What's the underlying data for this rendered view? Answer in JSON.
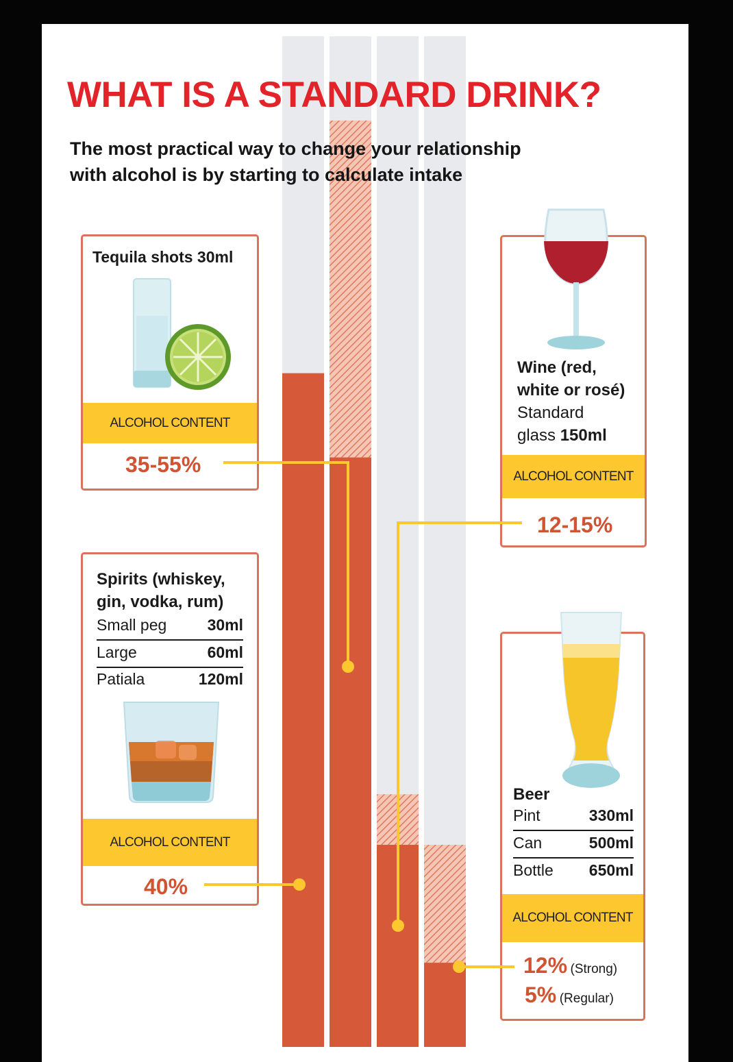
{
  "title": "WHAT IS A STANDARD DRINK?",
  "subtitle_line1": "The most practical way to change your relationship",
  "subtitle_line2": "with alcohol is by starting to calculate intake",
  "band_label": "ALCOHOL CONTENT",
  "colors": {
    "accent_red": "#e2232a",
    "value_orange": "#d05431",
    "band_yellow": "#fdc82f",
    "card_border": "#d7745b",
    "bar_fill": "#d65a3a",
    "bar_track": "#e2e3e8"
  },
  "tequila": {
    "name": "Tequila shots 30ml",
    "value": "35-55%",
    "icon": "shot-glass-with-lime-icon"
  },
  "wine": {
    "name_line1": "Wine (red,",
    "name_line2": "white or rosé)",
    "desc_line1": "Standard",
    "desc_line2_prefix": "glass ",
    "desc_line2_bold": "150ml",
    "value": "12-15%",
    "icon": "wine-glass-icon"
  },
  "spirits": {
    "name_line1": "Spirits (whiskey,",
    "name_line2": "gin, vodka, rum)",
    "rows": [
      {
        "label": "Small peg",
        "value": "30ml"
      },
      {
        "label": "Large",
        "value": "60ml"
      },
      {
        "label": "Patiala",
        "value": "120ml"
      }
    ],
    "value": "40%",
    "icon": "whiskey-glass-icon"
  },
  "beer": {
    "name": "Beer",
    "rows": [
      {
        "label": "Pint",
        "value": "330ml"
      },
      {
        "label": "Can",
        "value": "500ml"
      },
      {
        "label": "Bottle",
        "value": "650ml"
      }
    ],
    "value_strong": "12%",
    "label_strong": "(Strong)",
    "value_regular": "5%",
    "label_regular": "(Regular)",
    "icon": "beer-glass-icon"
  },
  "chart_data": {
    "type": "bar",
    "categories": [
      "Spirits",
      "Tequila",
      "Wine",
      "Beer"
    ],
    "series": [
      {
        "values": [
          40,
          35,
          12,
          5
        ]
      },
      {
        "values": [
          40,
          55,
          15,
          12
        ]
      }
    ],
    "ylim": [
      0,
      60
    ]
  }
}
